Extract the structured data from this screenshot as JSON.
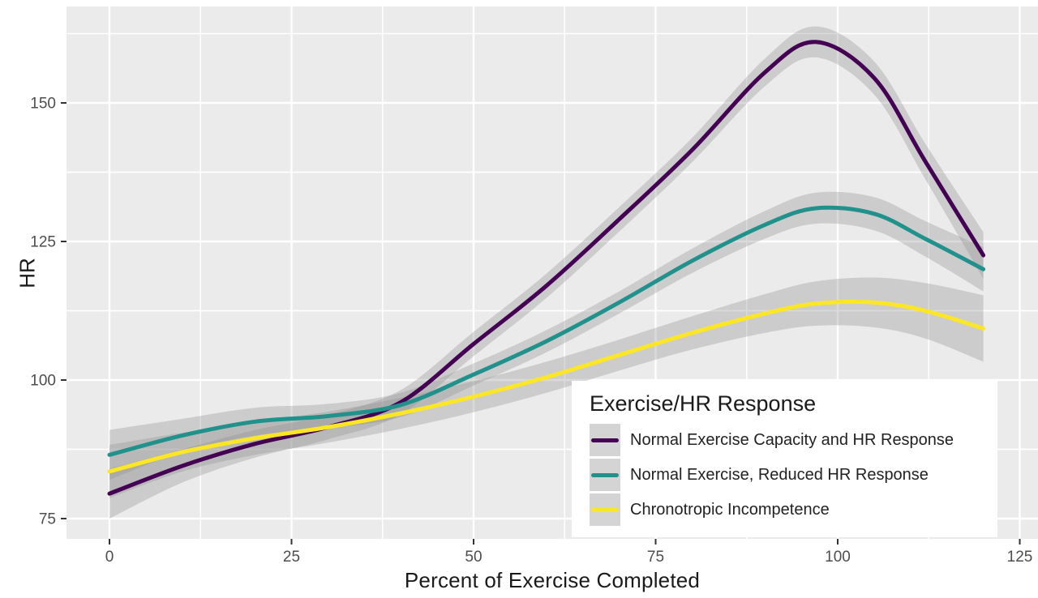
{
  "chart_data": {
    "type": "line",
    "title": "",
    "xlabel": "Percent of Exercise Completed",
    "ylabel": "HR",
    "legend_title": "Exercise/HR Response",
    "legend_position": "inside bottom-right",
    "panel_color": "#ebebeb",
    "gridline_color": "#ffffff",
    "ribbon_color": "#8f8f8f",
    "ribbon_opacity": 0.33,
    "tick_color": "#333333",
    "tick_label_color": "#4d4d4d",
    "axis_title_color": "#1a1a1a",
    "x_ticks": [
      0,
      25,
      50,
      75,
      100,
      125
    ],
    "y_ticks": [
      75,
      100,
      125,
      150
    ],
    "xlim": [
      -6,
      127.5
    ],
    "ylim": [
      70.5,
      167
    ],
    "grid": "white major and minor gridlines on grey panel",
    "x": [
      0,
      10,
      20,
      30,
      40,
      50,
      60,
      70,
      80,
      90,
      97,
      105,
      112,
      120
    ],
    "series": [
      {
        "name": "Normal Exercise Capacity and HR Response",
        "color": "#440154",
        "values": [
          79.5,
          84.5,
          88.5,
          91.5,
          96,
          106.5,
          117,
          129,
          141.5,
          155.5,
          161,
          154.5,
          139.5,
          122.5
        ],
        "ci_halfwidth": [
          4.5,
          3,
          2.5,
          2.2,
          2.2,
          2.2,
          2.2,
          2.2,
          2.2,
          2.5,
          2.8,
          3,
          3.2,
          4.2
        ]
      },
      {
        "name": "Normal Exercise, Reduced HR Response",
        "color": "#21918c",
        "values": [
          86.5,
          90,
          92.5,
          93.5,
          95.5,
          101,
          107,
          114,
          121.5,
          128,
          131,
          130,
          125.5,
          120
        ],
        "ci_halfwidth": [
          4.5,
          3,
          2.5,
          2.2,
          2.2,
          2,
          2,
          2,
          2.2,
          2.5,
          2.8,
          3,
          3.2,
          4
        ]
      },
      {
        "name": "Chronotropic Incompetence",
        "color": "#fde725",
        "values": [
          83.5,
          87,
          89.5,
          91.5,
          94,
          97,
          100.5,
          104.5,
          108.5,
          112,
          113.8,
          114,
          112.5,
          109.3
        ],
        "ci_halfwidth": [
          4.8,
          3.5,
          3,
          2.8,
          2.8,
          2.8,
          2.8,
          2.8,
          3,
          3.5,
          4,
          4.5,
          5,
          6
        ]
      }
    ]
  }
}
